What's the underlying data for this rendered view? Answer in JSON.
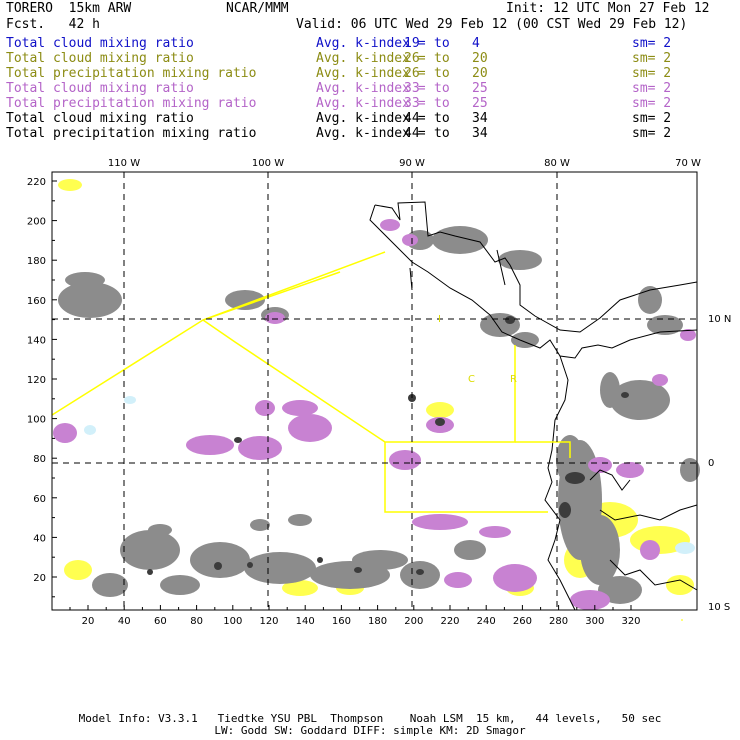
{
  "header": {
    "model": "TORERO  15km ARW",
    "org": "NCAR/MMM",
    "init": "Init: 12 UTC Mon 27 Feb 12",
    "fcst": "Fcst.   42 h",
    "valid": "Valid: 06 UTC Wed 29 Feb 12 (00 CST Wed 29 Feb 12)"
  },
  "legend": [
    {
      "field": "Total cloud mixing ratio",
      "index": "Avg. k-index =",
      "from": "19",
      "to_word": "to",
      "to": "4",
      "sm": "sm= 2",
      "color": "#1010c8"
    },
    {
      "field": "Total cloud mixing ratio",
      "index": "Avg. k-index =",
      "from": "26",
      "to_word": "to",
      "to": "20",
      "sm": "sm= 2",
      "color": "#8c8c14"
    },
    {
      "field": "Total precipitation mixing ratio",
      "index": "Avg. k-index =",
      "from": "26",
      "to_word": "to",
      "to": "20",
      "sm": "sm= 2",
      "color": "#8c8c14"
    },
    {
      "field": "Total cloud mixing ratio",
      "index": "Avg. k-index =",
      "from": "33",
      "to_word": "to",
      "to": "25",
      "sm": "sm= 2",
      "color": "#b464c8"
    },
    {
      "field": "Total precipitation mixing ratio",
      "index": "Avg. k-index =",
      "from": "33",
      "to_word": "to",
      "to": "25",
      "sm": "sm= 2",
      "color": "#b464c8"
    },
    {
      "field": "Total cloud mixing ratio",
      "index": "Avg. k-index =",
      "from": "44",
      "to_word": "to",
      "to": "34",
      "sm": "sm= 2",
      "color": "#000000"
    },
    {
      "field": "Total precipitation mixing ratio",
      "index": "Avg. k-index =",
      "from": "44",
      "to_word": "to",
      "to": "34",
      "sm": "sm= 2",
      "color": "#000000"
    }
  ],
  "map": {
    "top_longitudes": [
      "110 W",
      "100 W",
      "90 W",
      "80 W",
      "70 W"
    ],
    "right_latitudes": [
      "10 N",
      "0",
      "10 S"
    ],
    "x_ticks": [
      "20",
      "40",
      "60",
      "80",
      "100",
      "120",
      "140",
      "160",
      "180",
      "200",
      "220",
      "240",
      "260",
      "280",
      "300",
      "320"
    ],
    "y_ticks": [
      "220",
      "200",
      "180",
      "160",
      "140",
      "120",
      "100",
      "80",
      "60",
      "40",
      "20"
    ],
    "region_labels": [
      "I",
      "C",
      "R"
    ],
    "colors": {
      "gray": "#8c8c8c",
      "dark": "#3c3c3c",
      "purple": "#c882d2",
      "yellow": "#ffff50",
      "cyan": "#d2f0fa",
      "box": "#ffff00"
    }
  },
  "footer": {
    "line1": "Model Info: V3.3.1   Tiedtke YSU PBL  Thompson    Noah LSM  15 km,   44 levels,   50 sec",
    "line2": "LW: Godd SW: Goddard DIFF: simple KM: 2D Smagor"
  }
}
